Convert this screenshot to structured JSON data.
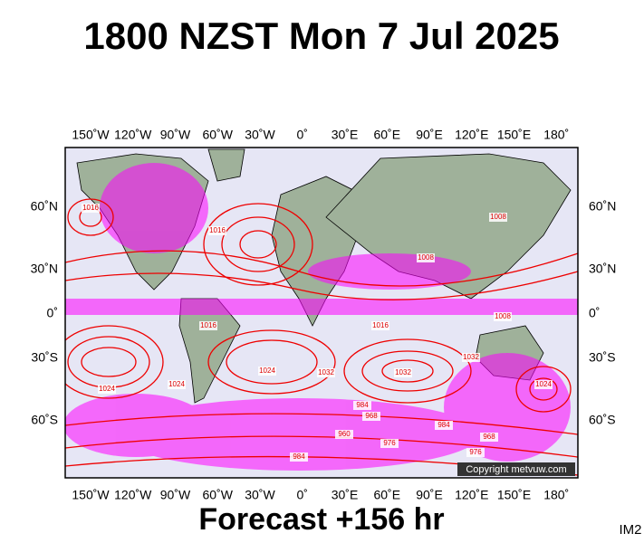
{
  "header": {
    "title": "1800 NZST Mon 7 Jul 2025"
  },
  "map": {
    "lon_labels": [
      "150˚W",
      "120˚W",
      "90˚W",
      "60˚W",
      "30˚W",
      "0˚",
      "30˚E",
      "60˚E",
      "90˚E",
      "120˚E",
      "150˚E",
      "180˚"
    ],
    "lat_labels": [
      "60˚N",
      "30˚N",
      "0˚",
      "30˚S",
      "60˚S"
    ],
    "isobar_labels": [
      "1016",
      "1024",
      "1016",
      "1008",
      "1008",
      "1016",
      "1024",
      "1032",
      "1032",
      "1024",
      "1024",
      "1032",
      "984",
      "968",
      "960",
      "976",
      "984",
      "968",
      "976",
      "984",
      "1008",
      "1016"
    ],
    "copyright": "Copyright metvuw.com"
  },
  "footer": {
    "forecast": "Forecast +156 hr",
    "image_id": "IM2"
  }
}
